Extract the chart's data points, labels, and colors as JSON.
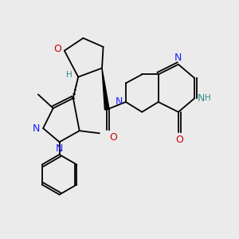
{
  "background_color": "#ebebeb",
  "figsize": [
    3.0,
    3.0
  ],
  "dpi": 100,
  "xlim": [
    0.0,
    9.5
  ],
  "ylim": [
    0.5,
    9.5
  ]
}
